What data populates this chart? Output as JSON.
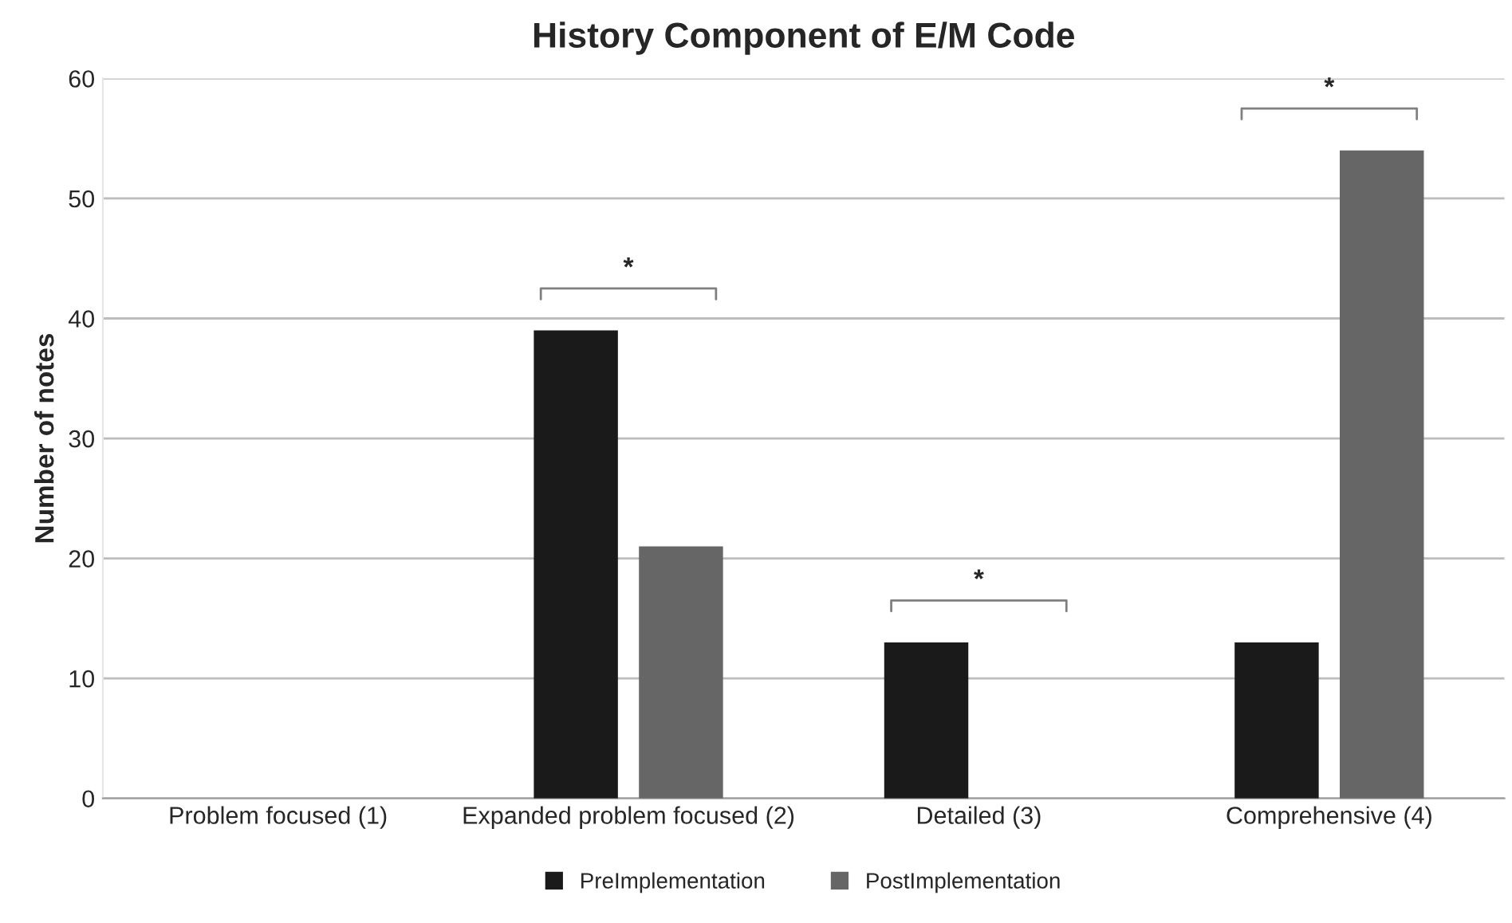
{
  "chart_data": {
    "type": "bar",
    "title": "History Component of E/M Code",
    "ylabel": "Number of notes",
    "categories": [
      "Problem focused (1)",
      "Expanded problem focused (2)",
      "Detailed (3)",
      "Comprehensive (4)"
    ],
    "series": [
      {
        "name": "PreImplementation",
        "color": "#1a1a1a",
        "values": [
          0,
          39,
          13,
          13
        ]
      },
      {
        "name": "PostImplementation",
        "color": "#666666",
        "values": [
          0,
          21,
          0,
          54
        ]
      }
    ],
    "ylim": [
      0,
      60
    ],
    "yticks": [
      0,
      10,
      20,
      30,
      40,
      50,
      60
    ],
    "grid": "y",
    "legend": "bottom",
    "annotations": [
      "*",
      "*",
      "*"
    ]
  }
}
